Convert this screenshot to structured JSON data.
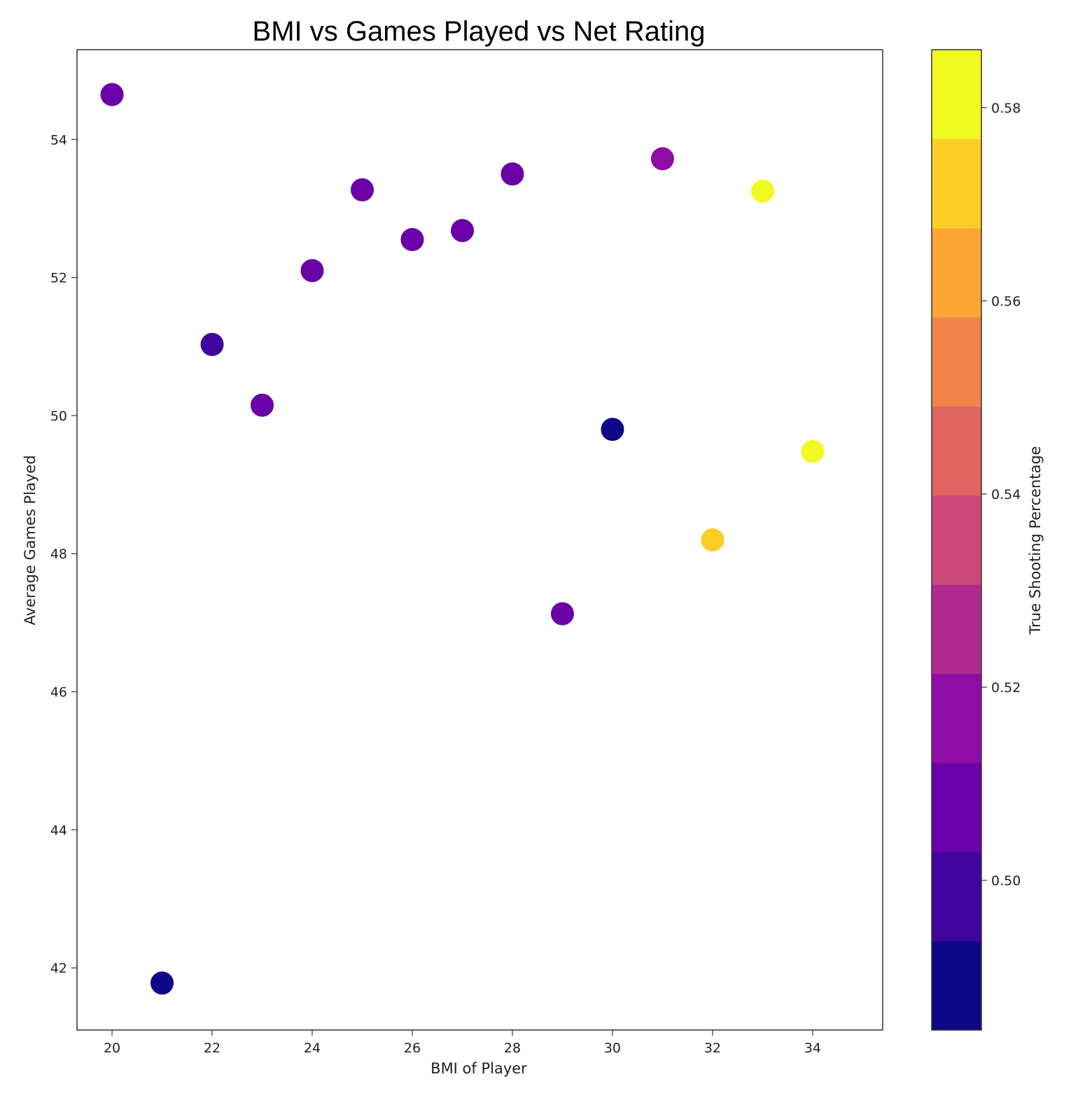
{
  "chart_data": {
    "type": "scatter",
    "title": "BMI vs Games Played vs Net Rating",
    "xlabel": "BMI of Player",
    "ylabel": "Average Games Played",
    "xlim": [
      19.3,
      35.4
    ],
    "ylim": [
      41.1,
      55.3
    ],
    "xticks": [
      20,
      22,
      24,
      26,
      28,
      30,
      32,
      34
    ],
    "yticks": [
      42,
      44,
      46,
      48,
      50,
      52,
      54
    ],
    "grid": false,
    "colorbar": {
      "label": "True Shooting Percentage",
      "min": 0.4845,
      "max": 0.586,
      "ticks": [
        0.5,
        0.52,
        0.54,
        0.56,
        0.58
      ],
      "colormap": "plasma",
      "colors": [
        "#0d0887",
        "#41049d",
        "#6a00a8",
        "#8f0da4",
        "#b12a90",
        "#cc4778",
        "#e16462",
        "#f2844b",
        "#fca636",
        "#fcce25",
        "#f0f921"
      ]
    },
    "points": [
      {
        "x": 20,
        "y": 54.65,
        "c": 0.511
      },
      {
        "x": 21,
        "y": 41.78,
        "c": 0.487
      },
      {
        "x": 22,
        "y": 51.03,
        "c": 0.499
      },
      {
        "x": 23,
        "y": 50.15,
        "c": 0.511
      },
      {
        "x": 24,
        "y": 52.1,
        "c": 0.511
      },
      {
        "x": 25,
        "y": 53.27,
        "c": 0.511
      },
      {
        "x": 26,
        "y": 52.55,
        "c": 0.511
      },
      {
        "x": 27,
        "y": 52.68,
        "c": 0.511
      },
      {
        "x": 28,
        "y": 53.5,
        "c": 0.511
      },
      {
        "x": 29,
        "y": 47.13,
        "c": 0.503
      },
      {
        "x": 30,
        "y": 49.8,
        "c": 0.487
      },
      {
        "x": 31,
        "y": 53.72,
        "c": 0.52
      },
      {
        "x": 32,
        "y": 48.2,
        "c": 0.571
      },
      {
        "x": 33,
        "y": 53.25,
        "c": 0.582
      },
      {
        "x": 34,
        "y": 49.48,
        "c": 0.582
      }
    ]
  }
}
